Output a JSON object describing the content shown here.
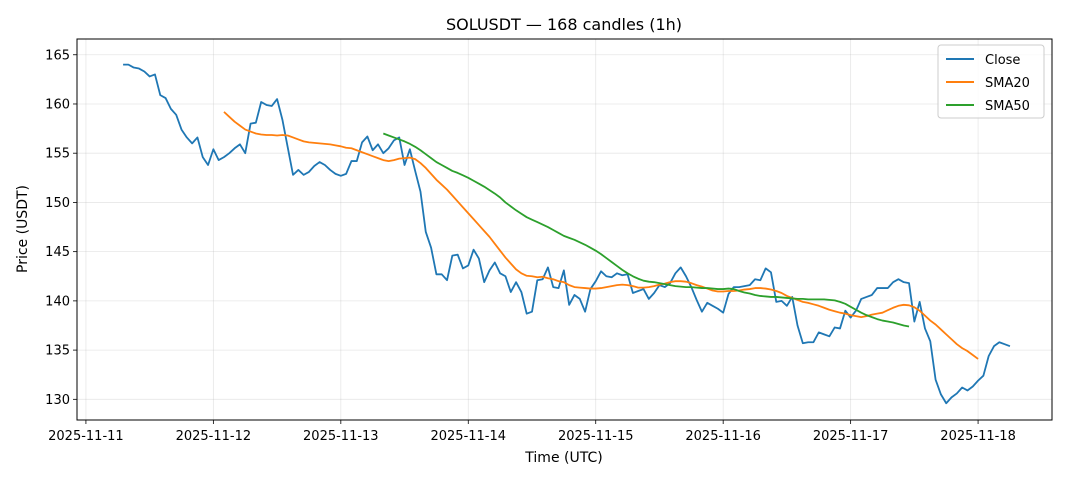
{
  "chart_data": {
    "type": "line",
    "title": "SOLUSDT — 168 candles (1h)",
    "xlabel": "Time (UTC)",
    "ylabel": "Price (USDT)",
    "x_start": "2025-11-11 07:00",
    "x_ticks": [
      "2025-11-11",
      "2025-11-12",
      "2025-11-13",
      "2025-11-14",
      "2025-11-15",
      "2025-11-16",
      "2025-11-17",
      "2025-11-18"
    ],
    "y_ticks": [
      130,
      135,
      140,
      145,
      150,
      155,
      160,
      165
    ],
    "ylim": [
      127.9,
      166.6
    ],
    "xlim_days": [
      -0.07,
      7.58
    ],
    "grid": true,
    "legend_position": "top-right",
    "colors": {
      "Close": "#1f77b4",
      "SMA20": "#ff7f0e",
      "SMA50": "#2ca02c"
    },
    "series": [
      {
        "name": "Close",
        "values": [
          164.0,
          164.0,
          163.7,
          163.6,
          163.3,
          162.8,
          163.0,
          160.9,
          160.6,
          159.5,
          158.9,
          157.4,
          156.6,
          156.0,
          156.6,
          154.6,
          153.8,
          155.4,
          154.3,
          154.6,
          155.0,
          155.5,
          155.9,
          155.0,
          158.0,
          158.1,
          160.2,
          159.9,
          159.8,
          160.5,
          158.4,
          155.6,
          152.8,
          153.3,
          152.8,
          153.1,
          153.7,
          154.1,
          153.8,
          153.3,
          152.9,
          152.7,
          152.9,
          154.2,
          154.2,
          156.1,
          156.7,
          155.3,
          155.9,
          155.0,
          155.5,
          156.3,
          156.6,
          153.8,
          155.4,
          153.2,
          151.1,
          147.0,
          145.4,
          142.7,
          142.7,
          142.1,
          144.6,
          144.7,
          143.3,
          143.6,
          145.2,
          144.3,
          141.9,
          143.1,
          143.9,
          142.8,
          142.5,
          140.9,
          141.9,
          140.9,
          138.7,
          138.9,
          142.1,
          142.2,
          143.4,
          141.4,
          141.3,
          143.1,
          139.6,
          140.6,
          140.2,
          138.9,
          141.2,
          142.0,
          143.0,
          142.5,
          142.4,
          142.8,
          142.6,
          142.7,
          140.8,
          141.0,
          141.2,
          140.2,
          140.8,
          141.6,
          141.4,
          141.8,
          142.8,
          143.4,
          142.5,
          141.4,
          140.1,
          138.9,
          139.8,
          139.5,
          139.2,
          138.8,
          140.7,
          141.4,
          141.4,
          141.5,
          141.6,
          142.2,
          142.1,
          143.3,
          142.9,
          139.9,
          140.0,
          139.5,
          140.4,
          137.5,
          135.7,
          135.8,
          135.8,
          136.8,
          136.6,
          136.4,
          137.3,
          137.2,
          139.0,
          138.3,
          139.0,
          140.2,
          140.4,
          140.6,
          141.3,
          141.3,
          141.3,
          141.9,
          142.2,
          141.9,
          141.8,
          137.9,
          139.9,
          137.2,
          135.9,
          132.0,
          130.5,
          129.6,
          130.2,
          130.6,
          131.2,
          130.9,
          131.3,
          131.9,
          132.4,
          134.4,
          135.4,
          135.8,
          135.6,
          135.4
        ]
      },
      {
        "name": "SMA20",
        "values": [
          null,
          null,
          null,
          null,
          null,
          null,
          null,
          null,
          null,
          null,
          null,
          null,
          null,
          null,
          null,
          null,
          null,
          null,
          null,
          159.2,
          158.7,
          158.2,
          157.8,
          157.4,
          157.2,
          157.0,
          156.9,
          156.85,
          156.85,
          156.8,
          156.85,
          156.8,
          156.6,
          156.4,
          156.2,
          156.1,
          156.05,
          156.0,
          155.95,
          155.9,
          155.8,
          155.7,
          155.55,
          155.5,
          155.3,
          155.1,
          154.9,
          154.7,
          154.5,
          154.3,
          154.2,
          154.3,
          154.45,
          154.5,
          154.55,
          154.4,
          154.0,
          153.5,
          152.9,
          152.3,
          151.8,
          151.3,
          150.7,
          150.1,
          149.5,
          148.9,
          148.3,
          147.7,
          147.1,
          146.5,
          145.8,
          145.1,
          144.4,
          143.8,
          143.2,
          142.8,
          142.55,
          142.5,
          142.4,
          142.45,
          142.3,
          142.2,
          142.0,
          141.9,
          141.6,
          141.4,
          141.35,
          141.3,
          141.25,
          141.25,
          141.3,
          141.4,
          141.5,
          141.6,
          141.65,
          141.6,
          141.5,
          141.35,
          141.35,
          141.4,
          141.5,
          141.65,
          141.75,
          141.9,
          142.0,
          142.0,
          141.95,
          141.8,
          141.6,
          141.45,
          141.25,
          141.05,
          140.95,
          140.95,
          141.0,
          141.0,
          141.05,
          141.15,
          141.2,
          141.3,
          141.3,
          141.25,
          141.15,
          141.0,
          140.8,
          140.5,
          140.3,
          140.1,
          139.9,
          139.8,
          139.65,
          139.5,
          139.3,
          139.1,
          138.95,
          138.8,
          138.7,
          138.55,
          138.45,
          138.35,
          138.45,
          138.6,
          138.7,
          138.8,
          139.05,
          139.3,
          139.5,
          139.6,
          139.55,
          139.35,
          139.0,
          138.5,
          138.0,
          137.6,
          137.1,
          136.6,
          136.1,
          135.6,
          135.2,
          134.9,
          134.5,
          134.1
        ]
      },
      {
        "name": "SMA50",
        "values": [
          null,
          null,
          null,
          null,
          null,
          null,
          null,
          null,
          null,
          null,
          null,
          null,
          null,
          null,
          null,
          null,
          null,
          null,
          null,
          null,
          null,
          null,
          null,
          null,
          null,
          null,
          null,
          null,
          null,
          null,
          null,
          null,
          null,
          null,
          null,
          null,
          null,
          null,
          null,
          null,
          null,
          null,
          null,
          null,
          null,
          null,
          null,
          null,
          null,
          157.0,
          156.8,
          156.6,
          156.4,
          156.2,
          155.95,
          155.65,
          155.3,
          154.9,
          154.5,
          154.1,
          153.8,
          153.5,
          153.2,
          153.0,
          152.75,
          152.5,
          152.2,
          151.9,
          151.6,
          151.25,
          150.9,
          150.5,
          150.0,
          149.6,
          149.2,
          148.85,
          148.5,
          148.25,
          148.0,
          147.75,
          147.5,
          147.2,
          146.9,
          146.6,
          146.4,
          146.2,
          145.95,
          145.7,
          145.4,
          145.1,
          144.75,
          144.35,
          143.95,
          143.55,
          143.15,
          142.8,
          142.5,
          142.25,
          142.05,
          141.95,
          141.9,
          141.8,
          141.7,
          141.6,
          141.5,
          141.45,
          141.4,
          141.4,
          141.35,
          141.3,
          141.3,
          141.25,
          141.2,
          141.2,
          141.25,
          141.2,
          141.0,
          140.85,
          140.75,
          140.6,
          140.5,
          140.45,
          140.4,
          140.4,
          140.35,
          140.3,
          140.25,
          140.2,
          140.2,
          140.15,
          140.15,
          140.15,
          140.15,
          140.1,
          140.05,
          139.9,
          139.7,
          139.4,
          139.1,
          138.8,
          138.55,
          138.35,
          138.15,
          138.0,
          137.9,
          137.8,
          137.65,
          137.5,
          137.4
        ]
      }
    ]
  }
}
